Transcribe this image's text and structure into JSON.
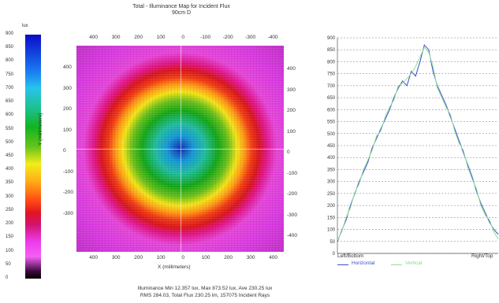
{
  "title": "Total - Illuminance Map for Incident Flux",
  "subtitle": "90cm D",
  "colorbar": {
    "unit": "lux",
    "ticks": [
      "900",
      "850",
      "800",
      "750",
      "700",
      "650",
      "600",
      "550",
      "500",
      "450",
      "400",
      "350",
      "300",
      "250",
      "200",
      "150",
      "100",
      "50",
      "0"
    ]
  },
  "map": {
    "top_ticks": [
      "400",
      "300",
      "200",
      "100",
      "0",
      "-100",
      "-200",
      "-300",
      "-400"
    ],
    "bottom_ticks": [
      "400",
      "300",
      "200",
      "100",
      "0",
      "100",
      "200",
      "300",
      "400"
    ],
    "left_ticks": [
      "400",
      "300",
      "200",
      "100",
      "0",
      "-100",
      "-200",
      "-300"
    ],
    "right_ticks": [
      "400",
      "300",
      "200",
      "100",
      "0",
      "-100",
      "-200",
      "-300",
      "-400"
    ],
    "xlabel": "X (millimeters)",
    "ylabel": "Y (millimeters)"
  },
  "stats": {
    "line1": "Illuminance Min 12.357 lux, Max 873.52 lux, Ave 230.25 lux",
    "line2": "RMS 284.03, Total Flux 230.25 lm, 157075 Incident Rays"
  },
  "chart_data": {
    "type": "line",
    "ylim": [
      0,
      900
    ],
    "yticks": [
      0,
      50,
      100,
      150,
      200,
      250,
      300,
      350,
      400,
      450,
      500,
      550,
      600,
      650,
      700,
      750,
      800,
      850,
      900
    ],
    "grid": true,
    "xlabel_left": "Left/Bottom",
    "xlabel_right": "Right/Top",
    "series": [
      {
        "name": "Horizontal",
        "color": "#3b4bd0",
        "values": [
          50,
          95,
          140,
          200,
          250,
          300,
          340,
          380,
          440,
          480,
          520,
          560,
          600,
          650,
          690,
          720,
          700,
          760,
          740,
          800,
          870,
          850,
          760,
          700,
          660,
          620,
          570,
          520,
          470,
          420,
          370,
          320,
          260,
          210,
          170,
          130,
          100,
          80
        ]
      },
      {
        "name": "Vertical",
        "color": "#8fe08f",
        "values": [
          55,
          90,
          150,
          190,
          255,
          290,
          350,
          390,
          430,
          490,
          510,
          570,
          610,
          640,
          700,
          710,
          730,
          750,
          780,
          820,
          860,
          840,
          780,
          690,
          650,
          610,
          580,
          510,
          460,
          430,
          360,
          310,
          270,
          200,
          160,
          140,
          90,
          60
        ]
      }
    ]
  }
}
